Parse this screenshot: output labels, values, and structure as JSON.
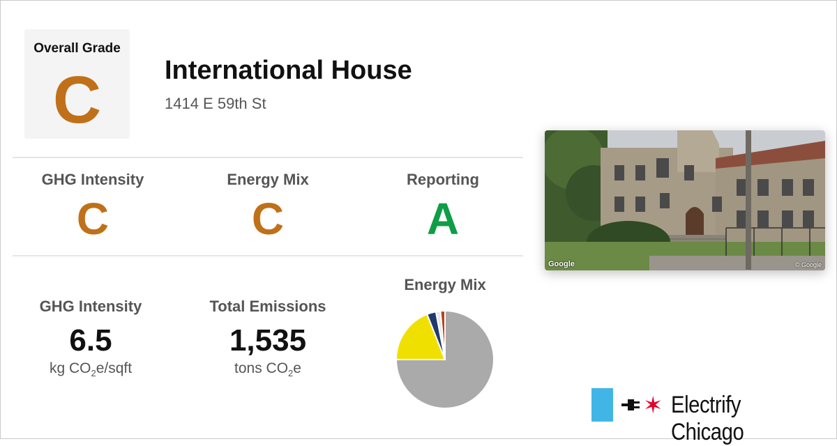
{
  "overall": {
    "label": "Overall Grade",
    "grade": "C"
  },
  "building": {
    "name": "International House",
    "address": "1414 E 59th St"
  },
  "grades": [
    {
      "label": "GHG Intensity",
      "grade": "C",
      "color": "#c07018"
    },
    {
      "label": "Energy Mix",
      "grade": "C",
      "color": "#c07018"
    },
    {
      "label": "Reporting",
      "grade": "A",
      "color": "#0f9d47"
    }
  ],
  "metrics": {
    "ghg": {
      "label": "GHG Intensity",
      "value": "6.5",
      "unit_pre": "kg CO",
      "unit_sub": "2",
      "unit_post": "e/sqft"
    },
    "emissions": {
      "label": "Total Emissions",
      "value": "1,535",
      "unit_pre": "tons CO",
      "unit_sub": "2",
      "unit_post": "e"
    }
  },
  "photo": {
    "watermark": "Google",
    "credit": "© Google"
  },
  "brand": {
    "name": "Electrify Chicago",
    "star": "✶"
  },
  "chart_data": {
    "type": "pie",
    "title": "Energy Mix",
    "slices": [
      {
        "value": 75,
        "color": "#aaaaaa"
      },
      {
        "value": 19,
        "color": "#f0e000"
      },
      {
        "value": 3,
        "color": "#1f3a6e"
      },
      {
        "value": 1.5,
        "color": "#e8e8e8"
      },
      {
        "value": 1.5,
        "color": "#b5441b"
      }
    ]
  }
}
